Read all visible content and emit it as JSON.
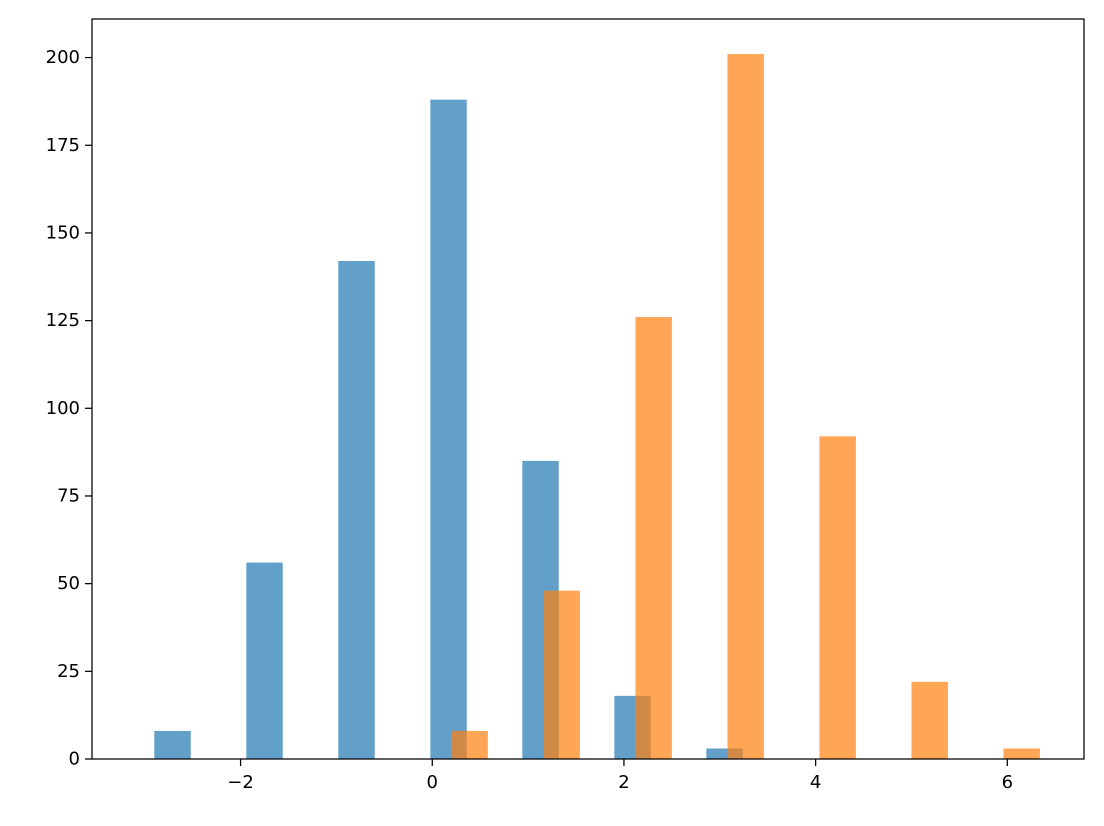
{
  "chart_data": {
    "type": "bar",
    "title": "",
    "xlabel": "",
    "ylabel": "",
    "xlim": [
      -3.55,
      6.8
    ],
    "ylim": [
      0,
      211
    ],
    "bar_width": 0.38,
    "grid": false,
    "legend": "none",
    "x_ticks": [
      {
        "value": -2,
        "label": "−2"
      },
      {
        "value": 0,
        "label": "0"
      },
      {
        "value": 2,
        "label": "2"
      },
      {
        "value": 4,
        "label": "4"
      },
      {
        "value": 6,
        "label": "6"
      }
    ],
    "y_ticks": [
      {
        "value": 0,
        "label": "0"
      },
      {
        "value": 25,
        "label": "25"
      },
      {
        "value": 50,
        "label": "50"
      },
      {
        "value": 75,
        "label": "75"
      },
      {
        "value": 100,
        "label": "100"
      },
      {
        "value": 125,
        "label": "125"
      },
      {
        "value": 150,
        "label": "150"
      },
      {
        "value": 175,
        "label": "175"
      },
      {
        "value": 200,
        "label": "200"
      }
    ],
    "series": [
      {
        "color": "#1f77b4",
        "opacity": 0.7,
        "bars": [
          {
            "x": -2.9,
            "value": 8
          },
          {
            "x": -1.94,
            "value": 56
          },
          {
            "x": -0.98,
            "value": 142
          },
          {
            "x": -0.02,
            "value": 188
          },
          {
            "x": 0.94,
            "value": 85
          },
          {
            "x": 1.9,
            "value": 18
          },
          {
            "x": 2.86,
            "value": 3
          }
        ]
      },
      {
        "color": "#ff7f0e",
        "opacity": 0.7,
        "bars": [
          {
            "x": 0.2,
            "value": 8
          },
          {
            "x": 1.16,
            "value": 48
          },
          {
            "x": 2.12,
            "value": 126
          },
          {
            "x": 3.08,
            "value": 201
          },
          {
            "x": 4.04,
            "value": 92
          },
          {
            "x": 5.0,
            "value": 22
          },
          {
            "x": 5.96,
            "value": 3
          }
        ]
      }
    ]
  }
}
